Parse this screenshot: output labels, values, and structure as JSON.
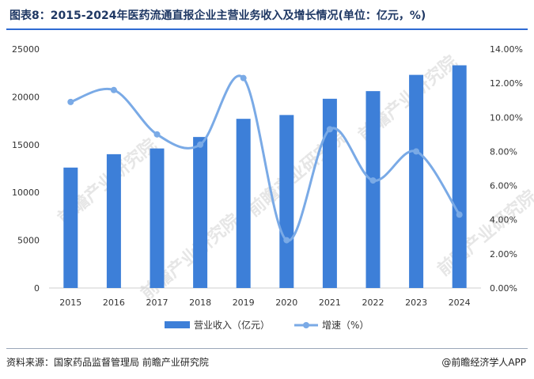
{
  "title": "图表8：2015-2024年医药流通直报企业主营业务收入及增长情况(单位：亿元，%)",
  "footer": {
    "source": "资料来源：国家药品监督管理局 前瞻产业研究院",
    "brand": "@前瞻经济学人APP"
  },
  "watermark": "前瞻产业研究院",
  "colors": {
    "bar": "#3d7fd8",
    "line": "#7aaae6",
    "title": "#1f3864",
    "rule": "#2e6bd3"
  },
  "chart_data": {
    "type": "bar",
    "categories": [
      "2015",
      "2016",
      "2017",
      "2018",
      "2019",
      "2020",
      "2021",
      "2022",
      "2023",
      "2024"
    ],
    "series": [
      {
        "name": "营业收入（亿元）",
        "type": "bar",
        "axis": "left",
        "values": [
          12600,
          14000,
          14600,
          15800,
          17700,
          18100,
          19800,
          20600,
          22300,
          23300
        ]
      },
      {
        "name": "增速（%）",
        "type": "line",
        "axis": "right",
        "values": [
          10.9,
          11.6,
          9.0,
          8.4,
          12.3,
          2.8,
          9.3,
          6.3,
          8.0,
          4.3
        ]
      }
    ],
    "yleft": {
      "lim": [
        0,
        25000
      ],
      "ticks": [
        "0",
        "5000",
        "10000",
        "15000",
        "20000",
        "25000"
      ]
    },
    "yright": {
      "lim": [
        0,
        14
      ],
      "ticks": [
        "0.00%",
        "2.00%",
        "4.00%",
        "6.00%",
        "8.00%",
        "10.00%",
        "12.00%",
        "14.00%"
      ]
    },
    "legend": "bottom",
    "grid": false
  }
}
